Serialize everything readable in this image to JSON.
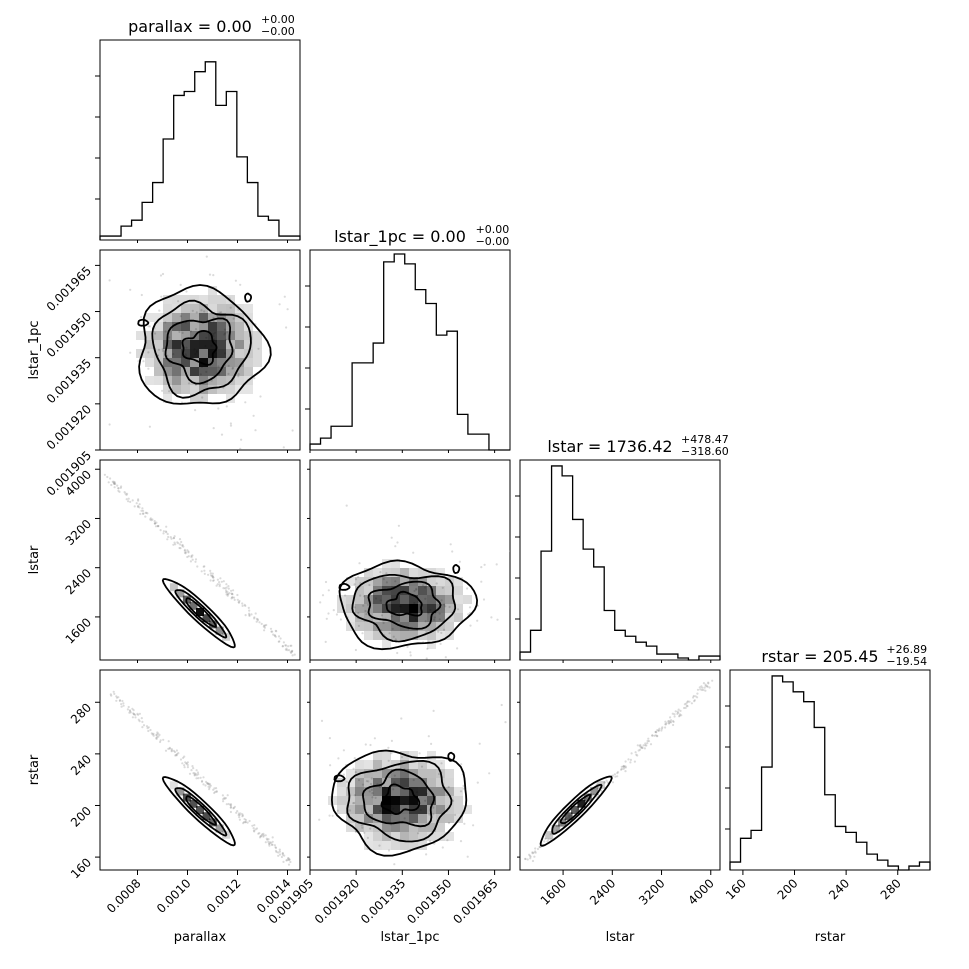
{
  "chart_data": {
    "type": "corner",
    "parameters": [
      "parallax",
      "lstar_1pc",
      "lstar",
      "rstar"
    ],
    "titles": [
      {
        "param": "parallax",
        "text": "parallax = 0.00",
        "upper": "+0.00",
        "lower": "−0.00"
      },
      {
        "param": "lstar_1pc",
        "text": "lstar_1pc = 0.00",
        "upper": "+0.00",
        "lower": "−0.00"
      },
      {
        "param": "lstar",
        "text": "lstar = 1736.42",
        "upper": "+478.47",
        "lower": "−318.60"
      },
      {
        "param": "rstar",
        "text": "rstar = 205.45",
        "upper": "+26.89",
        "lower": "−19.54"
      }
    ],
    "axis_labels": {
      "x": [
        "parallax",
        "lstar_1pc",
        "lstar",
        "rstar"
      ],
      "y": [
        "lstar_1pc",
        "lstar",
        "rstar"
      ]
    },
    "ticks": {
      "parallax": [
        "0.0008",
        "0.0010",
        "0.0012",
        "0.0014"
      ],
      "lstar_1pc": [
        "0.001905",
        "0.001920",
        "0.001935",
        "0.001950",
        "0.001965"
      ],
      "lstar": [
        "1600",
        "2400",
        "3200",
        "4000"
      ],
      "rstar": [
        "160",
        "200",
        "240",
        "280"
      ]
    },
    "ranges": {
      "parallax": [
        0.00065,
        0.00145
      ],
      "lstar_1pc": [
        0.001905,
        0.00197
      ],
      "lstar": [
        900,
        4150
      ],
      "rstar": [
        150,
        305
      ]
    },
    "histograms": {
      "parallax": [
        0.02,
        0.02,
        0.07,
        0.1,
        0.19,
        0.29,
        0.51,
        0.73,
        0.75,
        0.85,
        0.9,
        0.68,
        0.75,
        0.42,
        0.29,
        0.12,
        0.1,
        0.02,
        0.02
      ],
      "lstar_1pc": [
        0.03,
        0.06,
        0.12,
        0.12,
        0.44,
        0.44,
        0.54,
        0.95,
        0.99,
        0.94,
        0.81,
        0.74,
        0.58,
        0.6,
        0.18,
        0.08,
        0.08,
        0.0,
        0.0
      ],
      "lstar": [
        0.04,
        0.15,
        0.55,
        0.98,
        0.93,
        0.71,
        0.56,
        0.47,
        0.25,
        0.15,
        0.12,
        0.09,
        0.07,
        0.03,
        0.03,
        0.01,
        0.0,
        0.02,
        0.02
      ],
      "rstar": [
        0.04,
        0.16,
        0.2,
        0.52,
        0.98,
        0.95,
        0.9,
        0.85,
        0.72,
        0.38,
        0.22,
        0.19,
        0.14,
        0.08,
        0.05,
        0.02,
        0.0,
        0.02,
        0.04
      ]
    },
    "max_count": 1000
  }
}
